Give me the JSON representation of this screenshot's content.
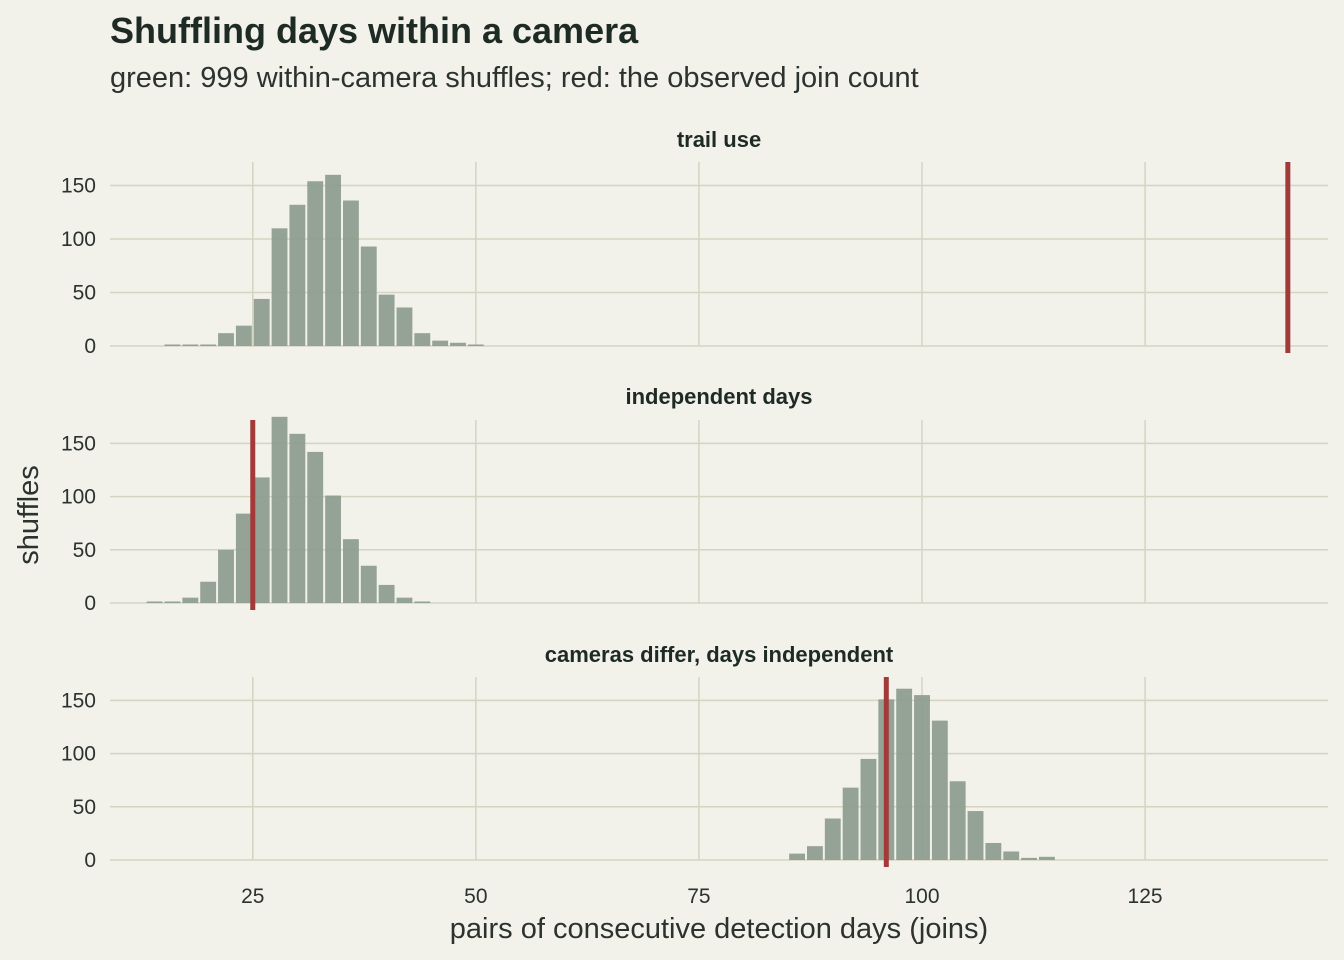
{
  "title": "Shuffling days within a camera",
  "subtitle": "green: 999 within-camera shuffles; red: the observed join count",
  "colors": {
    "background": "#f2f1ea",
    "grid": "#d4d4c1",
    "bar": "#8c9c8d",
    "observed": "#a33a3a"
  },
  "chart_data": {
    "type": "bar",
    "xlabel": "pairs of consecutive detection days (joins)",
    "ylabel": "shuffles",
    "xlim": [
      9,
      145.5
    ],
    "ylim": [
      0,
      172
    ],
    "xticks": [
      25,
      50,
      75,
      100,
      125
    ],
    "yticks": [
      0,
      50,
      100,
      150
    ],
    "bin_width": 2,
    "grid": true,
    "facets": [
      {
        "label": "trail use",
        "observed": 141,
        "x": [
          16,
          18,
          20,
          22,
          24,
          26,
          28,
          30,
          32,
          34,
          36,
          38,
          40,
          42,
          44,
          46,
          48,
          50
        ],
        "counts": [
          0,
          0,
          1,
          12,
          19,
          44,
          110,
          132,
          154,
          160,
          136,
          93,
          48,
          36,
          12,
          5,
          3,
          0
        ]
      },
      {
        "label": "independent days",
        "observed": 25,
        "x": [
          14,
          16,
          18,
          20,
          22,
          24,
          26,
          28,
          30,
          32,
          34,
          36,
          38,
          40,
          42,
          44
        ],
        "counts": [
          0,
          0,
          5,
          20,
          50,
          84,
          118,
          175,
          159,
          142,
          101,
          60,
          35,
          17,
          5,
          0
        ]
      },
      {
        "label": "cameras differ, days independent",
        "observed": 96,
        "x": [
          86,
          88,
          90,
          92,
          94,
          96,
          98,
          100,
          102,
          104,
          106,
          108,
          110,
          112,
          114
        ],
        "counts": [
          6,
          13,
          39,
          68,
          95,
          151,
          161,
          155,
          131,
          74,
          46,
          16,
          8,
          2,
          3
        ]
      }
    ]
  }
}
